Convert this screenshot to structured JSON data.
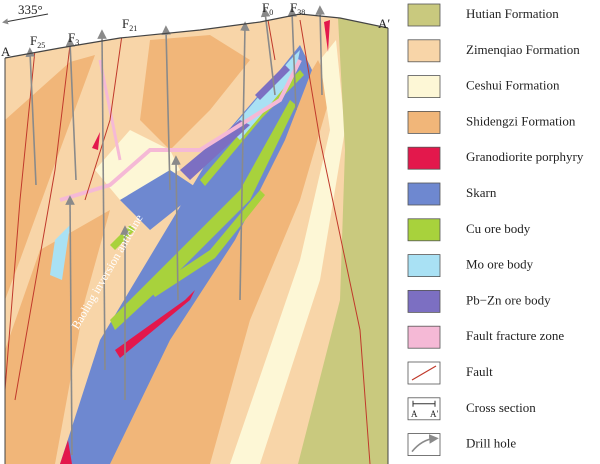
{
  "section": {
    "orientation": "335°",
    "start_label": "A",
    "end_label": "A′",
    "faults": [
      {
        "letter": "F",
        "sub": "25"
      },
      {
        "letter": "F",
        "sub": "3"
      },
      {
        "letter": "F",
        "sub": "21"
      },
      {
        "letter": "F",
        "sub": "0"
      },
      {
        "letter": "F",
        "sub": "38"
      }
    ],
    "structure_label": "Baoling inversion anticline"
  },
  "legend": {
    "items": [
      {
        "label": "Hutian Formation",
        "color": "#c9c97e"
      },
      {
        "label": "Zimenqiao Formation",
        "color": "#f8d5a8"
      },
      {
        "label": "Ceshui Formation",
        "color": "#fdf7d6"
      },
      {
        "label": "Shidengzi Formation",
        "color": "#f1b679"
      },
      {
        "label": "Granodiorite porphyry",
        "color": "#e3184c"
      },
      {
        "label": "Skarn",
        "color": "#6e88d0"
      },
      {
        "label": "Cu ore body",
        "color": "#a8d23c"
      },
      {
        "label": "Mo ore body",
        "color": "#a9e1f4"
      },
      {
        "label": "Pb−Zn ore body",
        "color": "#7c6fc2"
      },
      {
        "label": "Fault fracture zone",
        "color": "#f5b9d6"
      },
      {
        "label": "Fault",
        "color": "#c0392b"
      },
      {
        "label": "Cross section"
      },
      {
        "label": "Drill hole"
      }
    ],
    "cross_section_ends": [
      "A",
      "A′"
    ]
  }
}
